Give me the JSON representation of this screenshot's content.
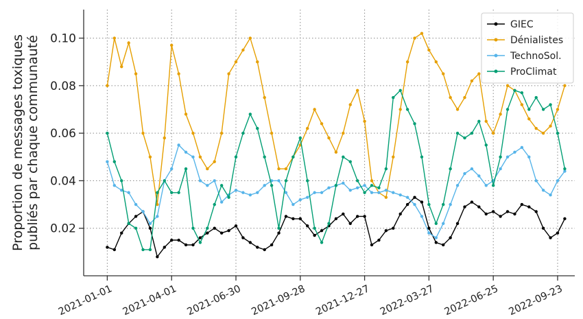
{
  "chart_data": {
    "type": "line",
    "ylabel": [
      "Proportion de messages toxiques",
      "publiés par chaque communauté"
    ],
    "x": [
      "2021-01-01",
      "2021-01-11",
      "2021-01-21",
      "2021-01-31",
      "2021-02-10",
      "2021-02-20",
      "2021-03-02",
      "2021-03-12",
      "2021-03-22",
      "2021-04-01",
      "2021-04-11",
      "2021-04-21",
      "2021-05-01",
      "2021-05-11",
      "2021-05-21",
      "2021-05-31",
      "2021-06-10",
      "2021-06-20",
      "2021-06-30",
      "2021-07-10",
      "2021-07-20",
      "2021-07-30",
      "2021-08-09",
      "2021-08-19",
      "2021-08-29",
      "2021-09-08",
      "2021-09-18",
      "2021-09-28",
      "2021-10-08",
      "2021-10-18",
      "2021-10-28",
      "2021-11-07",
      "2021-11-17",
      "2021-11-27",
      "2021-12-07",
      "2021-12-17",
      "2021-12-27",
      "2022-01-06",
      "2022-01-16",
      "2022-01-26",
      "2022-02-05",
      "2022-02-15",
      "2022-02-25",
      "2022-03-07",
      "2022-03-17",
      "2022-03-27",
      "2022-04-06",
      "2022-04-16",
      "2022-04-26",
      "2022-05-06",
      "2022-05-16",
      "2022-05-26",
      "2022-06-05",
      "2022-06-15",
      "2022-06-25",
      "2022-07-05",
      "2022-07-15",
      "2022-07-25",
      "2022-08-04",
      "2022-08-14",
      "2022-08-24",
      "2022-09-03",
      "2022-09-13",
      "2022-09-23",
      "2022-10-03"
    ],
    "series": [
      {
        "name": "GIEC",
        "color": "#000000",
        "values": [
          0.012,
          0.011,
          0.018,
          0.022,
          0.025,
          0.027,
          0.02,
          0.008,
          0.012,
          0.015,
          0.015,
          0.013,
          0.013,
          0.016,
          0.018,
          0.02,
          0.018,
          0.019,
          0.021,
          0.016,
          0.014,
          0.012,
          0.011,
          0.013,
          0.018,
          0.025,
          0.024,
          0.024,
          0.021,
          0.017,
          0.019,
          0.021,
          0.024,
          0.026,
          0.022,
          0.025,
          0.025,
          0.013,
          0.015,
          0.019,
          0.02,
          0.026,
          0.03,
          0.033,
          0.031,
          0.02,
          0.014,
          0.013,
          0.016,
          0.022,
          0.029,
          0.031,
          0.029,
          0.026,
          0.027,
          0.025,
          0.027,
          0.026,
          0.03,
          0.029,
          0.027,
          0.02,
          0.016,
          0.018,
          0.024
        ]
      },
      {
        "name": "Dénialistes",
        "color": "#e69f00",
        "values": [
          0.08,
          0.1,
          0.088,
          0.098,
          0.085,
          0.06,
          0.05,
          0.03,
          0.058,
          0.097,
          0.085,
          0.068,
          0.06,
          0.05,
          0.045,
          0.048,
          0.06,
          0.085,
          0.09,
          0.095,
          0.1,
          0.09,
          0.075,
          0.06,
          0.045,
          0.045,
          0.05,
          0.055,
          0.062,
          0.07,
          0.064,
          0.058,
          0.052,
          0.06,
          0.072,
          0.078,
          0.065,
          0.04,
          0.035,
          0.033,
          0.05,
          0.07,
          0.09,
          0.1,
          0.102,
          0.095,
          0.09,
          0.085,
          0.075,
          0.07,
          0.075,
          0.082,
          0.085,
          0.065,
          0.06,
          0.068,
          0.08,
          0.078,
          0.072,
          0.066,
          0.062,
          0.06,
          0.063,
          0.07,
          0.08
        ]
      },
      {
        "name": "TechnoSol.",
        "color": "#56b4e9",
        "values": [
          0.048,
          0.038,
          0.036,
          0.035,
          0.03,
          0.027,
          0.022,
          0.025,
          0.04,
          0.045,
          0.055,
          0.052,
          0.05,
          0.04,
          0.038,
          0.04,
          0.031,
          0.034,
          0.036,
          0.035,
          0.034,
          0.035,
          0.038,
          0.04,
          0.04,
          0.035,
          0.03,
          0.032,
          0.033,
          0.035,
          0.035,
          0.037,
          0.038,
          0.039,
          0.036,
          0.037,
          0.038,
          0.035,
          0.035,
          0.036,
          0.035,
          0.034,
          0.033,
          0.03,
          0.025,
          0.018,
          0.016,
          0.022,
          0.03,
          0.038,
          0.043,
          0.045,
          0.042,
          0.038,
          0.04,
          0.045,
          0.05,
          0.052,
          0.054,
          0.05,
          0.04,
          0.036,
          0.034,
          0.04,
          0.044
        ]
      },
      {
        "name": "ProClimat",
        "color": "#009e73",
        "values": [
          0.06,
          0.048,
          0.04,
          0.022,
          0.02,
          0.011,
          0.011,
          0.035,
          0.04,
          0.035,
          0.035,
          0.045,
          0.02,
          0.014,
          0.02,
          0.03,
          0.038,
          0.033,
          0.05,
          0.06,
          0.068,
          0.062,
          0.05,
          0.038,
          0.02,
          0.04,
          0.05,
          0.058,
          0.04,
          0.02,
          0.014,
          0.022,
          0.038,
          0.05,
          0.048,
          0.04,
          0.035,
          0.038,
          0.037,
          0.045,
          0.075,
          0.078,
          0.07,
          0.064,
          0.05,
          0.03,
          0.022,
          0.03,
          0.045,
          0.06,
          0.058,
          0.06,
          0.065,
          0.055,
          0.038,
          0.05,
          0.07,
          0.078,
          0.077,
          0.07,
          0.075,
          0.07,
          0.072,
          0.06,
          0.045
        ]
      }
    ],
    "xlim": [
      "2020-11-29",
      "2022-10-17"
    ],
    "xticks": [
      "2021-01-01",
      "2021-04-01",
      "2021-06-30",
      "2021-09-28",
      "2021-12-27",
      "2022-03-27",
      "2022-06-25",
      "2022-09-23"
    ],
    "ylim": [
      0,
      0.112
    ],
    "yticks": [
      0.02,
      0.04,
      0.06,
      0.08,
      {
        "value": 0.1,
        "label": "0.10"
      }
    ],
    "grid": true,
    "legend": "upper right"
  }
}
